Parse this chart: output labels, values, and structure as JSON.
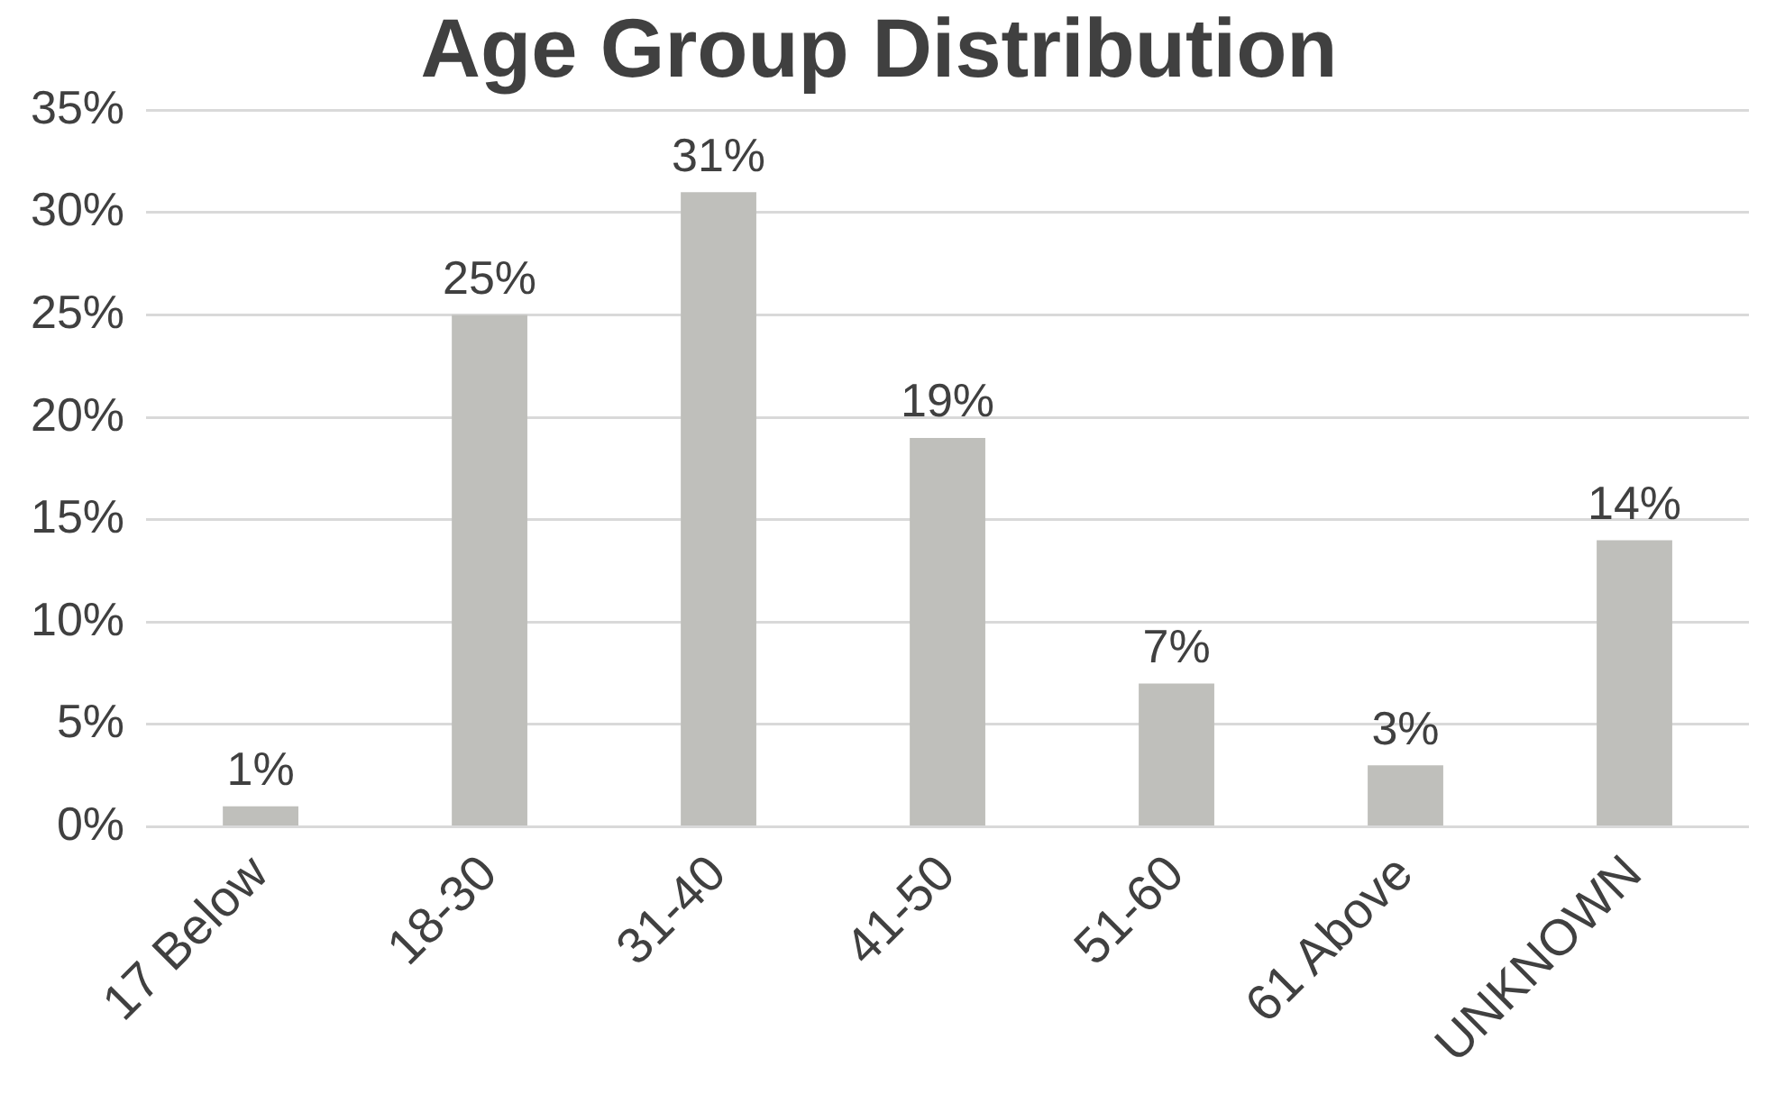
{
  "chart_data": {
    "type": "bar",
    "title": "Age Group Distribution",
    "categories": [
      "17 Below",
      "18-30",
      "31-40",
      "41-50",
      "51-60",
      "61 Above",
      "UNKNOWN"
    ],
    "values": [
      1,
      25,
      31,
      19,
      7,
      3,
      14
    ],
    "value_labels": [
      "1%",
      "25%",
      "31%",
      "19%",
      "7%",
      "3%",
      "14%"
    ],
    "color": "#bfbfbb",
    "ylim": [
      0,
      35
    ],
    "yticks": [
      {
        "value": 0,
        "label": "0%"
      },
      {
        "value": 5,
        "label": "5%"
      },
      {
        "value": 10,
        "label": "10%"
      },
      {
        "value": 15,
        "label": "15%"
      },
      {
        "value": 20,
        "label": "20%"
      },
      {
        "value": 25,
        "label": "25%"
      },
      {
        "value": 30,
        "label": "30%"
      },
      {
        "value": 35,
        "label": "35%"
      }
    ],
    "grid": "y",
    "legend": false
  }
}
